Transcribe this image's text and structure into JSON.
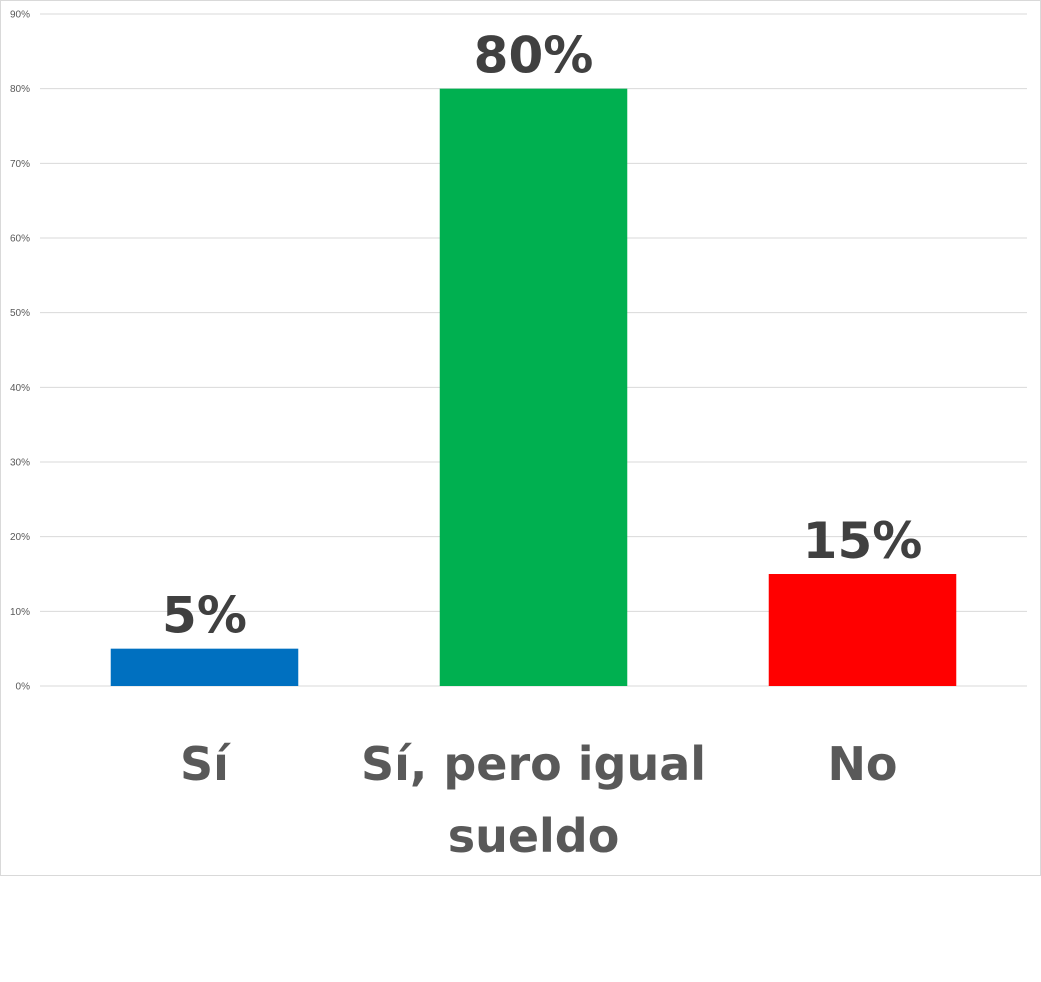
{
  "chart_data": {
    "type": "bar",
    "categories": [
      "Sí",
      "Sí, pero igual sueldo",
      "No"
    ],
    "category_lines": [
      [
        "Sí"
      ],
      [
        "Sí, pero igual",
        "sueldo"
      ],
      [
        "No"
      ]
    ],
    "values": [
      5,
      80,
      15
    ],
    "value_labels": [
      "5%",
      "80%",
      "15%"
    ],
    "colors": [
      "#0070C0",
      "#00B050",
      "#FF0000"
    ],
    "ylim": [
      0,
      90
    ],
    "yticks": [
      0,
      10,
      20,
      30,
      40,
      50,
      60,
      70,
      80,
      90
    ],
    "ytick_labels": [
      "0%",
      "10%",
      "20%",
      "30%",
      "40%",
      "50%",
      "60%",
      "70%",
      "80%",
      "90%"
    ],
    "grid": true,
    "gridline_color": "#d9d9d9"
  }
}
